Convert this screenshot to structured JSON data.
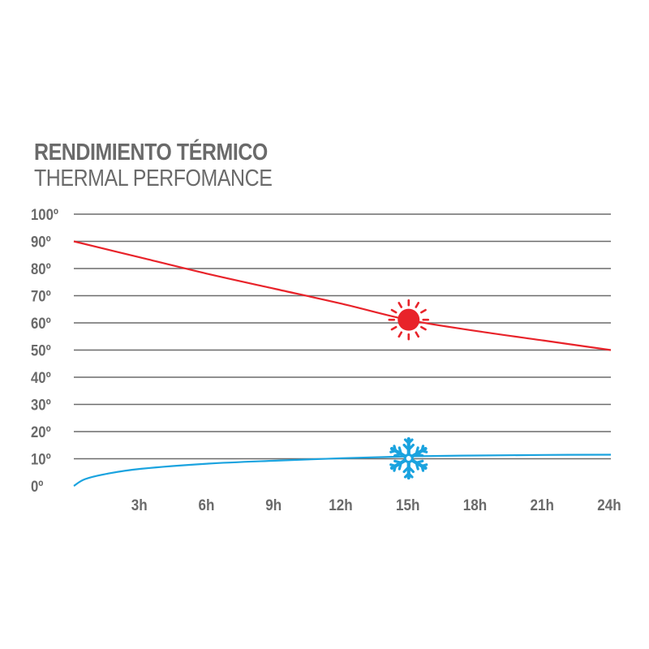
{
  "title": "RENDIMIENTO TÉRMICO",
  "subtitle": "THERMAL PERFOMANCE",
  "colors": {
    "hot": "#e8232a",
    "cold": "#1aa3df",
    "grid": "#6b6b6b",
    "text": "#6a6a6a"
  },
  "icons": {
    "hot_series": "sun-icon",
    "cold_series": "snowflake-icon"
  },
  "chart_data": {
    "type": "line",
    "title": "RENDIMIENTO TÉRMICO",
    "subtitle": "THERMAL PERFOMANCE",
    "xlabel": "",
    "ylabel": "",
    "xlim": [
      0,
      24
    ],
    "ylim": [
      0,
      100
    ],
    "x_ticks": [
      3,
      6,
      9,
      12,
      15,
      18,
      21,
      24
    ],
    "x_tick_labels": [
      "3h",
      "6h",
      "9h",
      "12h",
      "15h",
      "18h",
      "21h",
      "24h"
    ],
    "y_ticks": [
      0,
      10,
      20,
      30,
      40,
      50,
      60,
      70,
      80,
      90,
      100
    ],
    "y_tick_labels": [
      "0º",
      "10º",
      "20º",
      "30º",
      "40º",
      "50º",
      "60º",
      "70º",
      "80º",
      "90º",
      "100º"
    ],
    "grid": true,
    "series": [
      {
        "key": "hot",
        "color": "#e8232a",
        "x": [
          0,
          3,
          6,
          9,
          12,
          15,
          18,
          21,
          24
        ],
        "y": [
          90,
          84,
          78,
          72.5,
          67,
          61,
          57,
          53.5,
          50
        ]
      },
      {
        "key": "cold",
        "color": "#1aa3df",
        "x": [
          0,
          0.5,
          1.5,
          3,
          6,
          9,
          12,
          15,
          18,
          21,
          24
        ],
        "y": [
          0,
          2.5,
          4.5,
          6.3,
          8.2,
          9.3,
          10.2,
          10.9,
          11.2,
          11.4,
          11.5
        ]
      }
    ]
  }
}
